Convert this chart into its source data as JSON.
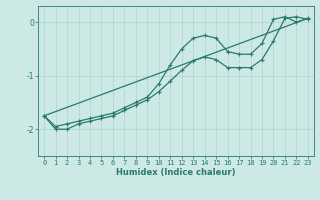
{
  "xlabel": "Humidex (Indice chaleur)",
  "xlim": [
    -0.5,
    23.5
  ],
  "ylim": [
    -2.5,
    0.3
  ],
  "bg_color": "#cce9e5",
  "grid_color": "#aed4cf",
  "line_color": "#2a7a6e",
  "x_ticks": [
    0,
    1,
    2,
    3,
    4,
    5,
    6,
    7,
    8,
    9,
    10,
    11,
    12,
    13,
    14,
    15,
    16,
    17,
    18,
    19,
    20,
    21,
    22,
    23
  ],
  "y_ticks": [
    0,
    -1,
    -2
  ],
  "line1_x": [
    0,
    1,
    2,
    3,
    4,
    5,
    6,
    7,
    8,
    9,
    10,
    11,
    12,
    13,
    14,
    15,
    16,
    17,
    18,
    19,
    20,
    21,
    22,
    23
  ],
  "line1_y": [
    -1.75,
    -1.95,
    -1.9,
    -1.85,
    -1.8,
    -1.75,
    -1.7,
    -1.6,
    -1.5,
    -1.4,
    -1.15,
    -0.8,
    -0.5,
    -0.3,
    -0.25,
    -0.3,
    -0.55,
    -0.6,
    -0.6,
    -0.4,
    0.05,
    0.1,
    0.0,
    0.07
  ],
  "line2_x": [
    0,
    1,
    2,
    3,
    4,
    5,
    6,
    7,
    8,
    9,
    10,
    11,
    12,
    13,
    14,
    15,
    16,
    17,
    18,
    19,
    20,
    21,
    22,
    23
  ],
  "line2_y": [
    -1.75,
    -2.0,
    -2.0,
    -1.9,
    -1.85,
    -1.8,
    -1.75,
    -1.65,
    -1.55,
    -1.45,
    -1.3,
    -1.1,
    -0.9,
    -0.72,
    -0.65,
    -0.7,
    -0.85,
    -0.85,
    -0.85,
    -0.7,
    -0.35,
    0.07,
    0.1,
    0.05
  ],
  "line3_x": [
    0,
    23
  ],
  "line3_y": [
    -1.75,
    0.07
  ],
  "marker_size": 3,
  "linewidth": 0.9,
  "xlabel_fontsize": 6.0,
  "tick_fontsize": 5.0
}
